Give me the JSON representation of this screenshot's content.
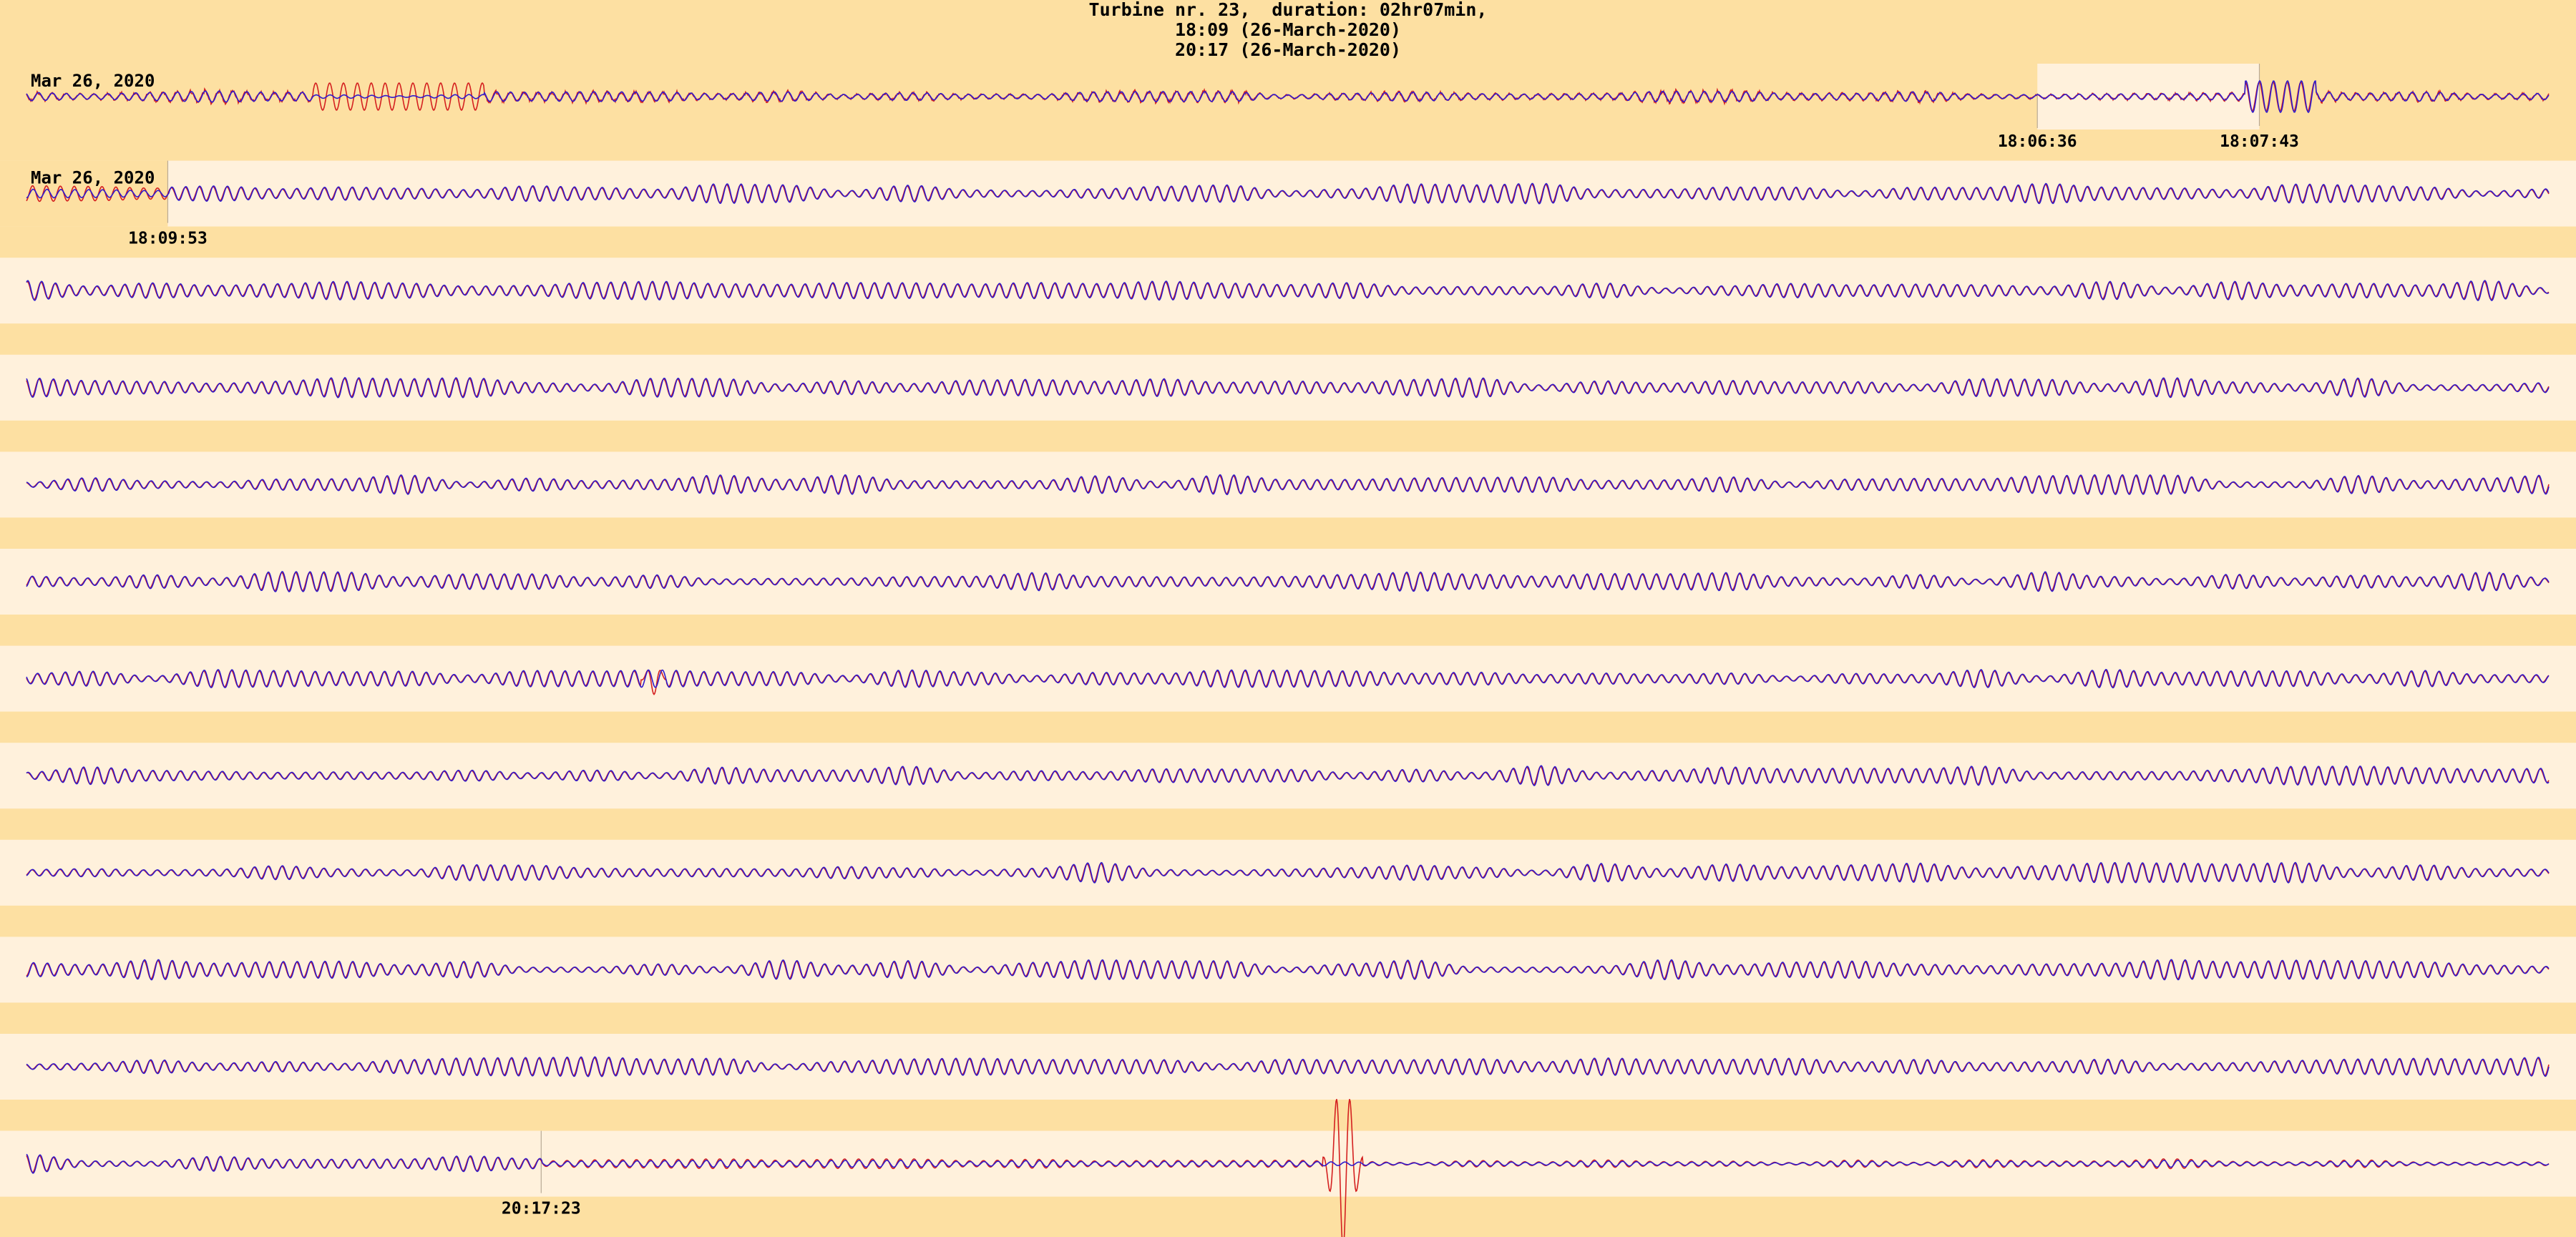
{
  "header": {
    "title_line1": "Turbine nr. 23,  duration: 02hr07min,",
    "title_line2": "18:09 (26-March-2020)",
    "title_line3": "20:17 (26-March-2020)"
  },
  "colors": {
    "background": "#fde0a2",
    "band": "#fff1dc",
    "series_a": "#d42020",
    "series_b": "#2f1bcc"
  },
  "chart_data": {
    "type": "line",
    "title": "Turbine nr. 23,  duration: 02hr07min,",
    "subtitle": [
      "18:09 (26-March-2020)",
      "20:17 (26-March-2020)"
    ],
    "row_count": 12,
    "series_colors": [
      "#d42020",
      "#2f1bcc"
    ],
    "row_labels": [
      {
        "row": 0,
        "date": "Mar 26, 2020",
        "times": [
          "18:06:36",
          "18:07:43"
        ]
      },
      {
        "row": 1,
        "date": "Mar 26, 2020",
        "times": [
          "18:09:53"
        ]
      },
      {
        "row": 11,
        "date": "",
        "times": [
          "20:17:23"
        ]
      }
    ],
    "highlight_spans": [
      {
        "row": 0,
        "from": 0.797,
        "to": 0.885
      },
      {
        "row": 1,
        "from": 0.0,
        "to": 0.056
      },
      {
        "row": 11,
        "from": 0.0,
        "to": 0.204
      }
    ],
    "band_rows": [
      1,
      2,
      3,
      4,
      5,
      6,
      7,
      8,
      9,
      10,
      11
    ],
    "events": [
      {
        "row": 6,
        "at": 0.249,
        "series": "red",
        "amplitude": "large"
      },
      {
        "row": 11,
        "at": 0.522,
        "series": "red",
        "amplitude": "very large"
      }
    ]
  }
}
